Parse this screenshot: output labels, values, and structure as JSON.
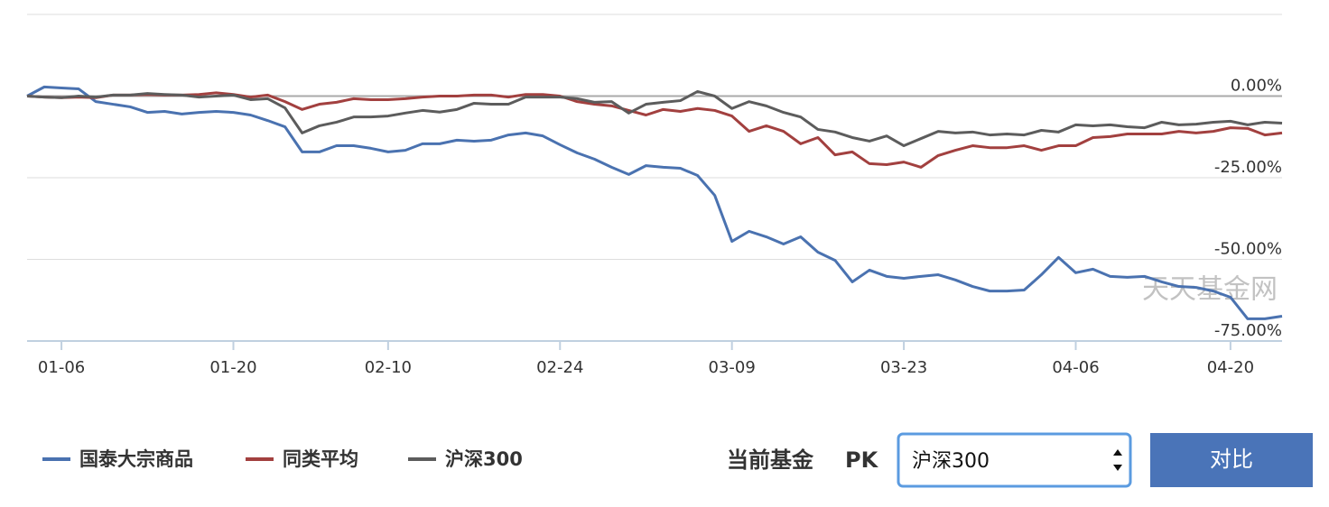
{
  "chart_data": {
    "type": "line",
    "watermark": "天天基金网",
    "categories": [
      null,
      null,
      "01-06",
      null,
      null,
      null,
      null,
      null,
      null,
      null,
      null,
      null,
      "01-20",
      null,
      null,
      null,
      null,
      null,
      null,
      null,
      null,
      "02-10",
      null,
      null,
      null,
      null,
      null,
      null,
      null,
      null,
      null,
      "02-24",
      null,
      null,
      null,
      null,
      null,
      null,
      null,
      null,
      null,
      "03-09",
      null,
      null,
      null,
      null,
      null,
      null,
      null,
      null,
      null,
      "03-23",
      null,
      null,
      null,
      null,
      null,
      null,
      null,
      null,
      null,
      "04-06",
      null,
      null,
      null,
      null,
      null,
      null,
      null,
      null,
      "04-20",
      null,
      null,
      null
    ],
    "series": [
      {
        "name": "国泰大宗商品",
        "color": "#4a72b0",
        "values": [
          0,
          2.8,
          2.5,
          2.2,
          -1.7,
          -2.5,
          -3.3,
          -5.0,
          -4.7,
          -5.5,
          -5.0,
          -4.7,
          -5.0,
          -5.8,
          -7.5,
          -9.4,
          -17.1,
          -17.1,
          -15.2,
          -15.2,
          -16.0,
          -17.1,
          -16.6,
          -14.6,
          -14.6,
          -13.5,
          -13.8,
          -13.5,
          -11.9,
          -11.3,
          -12.2,
          -14.9,
          -17.4,
          -19.3,
          -21.8,
          -24.0,
          -21.3,
          -21.8,
          -22.1,
          -24.3,
          -30.4,
          -44.5,
          -41.4,
          -43.1,
          -45.3,
          -43.1,
          -47.8,
          -50.3,
          -56.9,
          -53.3,
          -55.2,
          -55.8,
          -55.2,
          -54.7,
          -56.3,
          -58.3,
          -59.7,
          -59.7,
          -59.4,
          -54.7,
          -49.4,
          -54.1,
          -53.0,
          -55.2,
          -55.5,
          -55.2,
          -56.9,
          -58.3,
          -58.6,
          -59.7,
          -61.6,
          -68.2,
          -68.2,
          -67.4
        ]
      },
      {
        "name": "同类平均",
        "color": "#a2403f",
        "values": [
          0,
          -0.3,
          -0.5,
          -0.3,
          -0.5,
          0.3,
          0.3,
          0.5,
          0.3,
          0.3,
          0.5,
          1.0,
          0.5,
          -0.3,
          0.3,
          -1.7,
          -4.1,
          -2.5,
          -1.9,
          -0.8,
          -1.1,
          -1.1,
          -0.8,
          -0.3,
          0,
          0,
          0.3,
          0.3,
          -0.3,
          0.5,
          0.5,
          0,
          -1.7,
          -2.5,
          -3.0,
          -4.4,
          -5.8,
          -4.1,
          -4.7,
          -3.8,
          -4.4,
          -6.1,
          -10.8,
          -9.1,
          -10.8,
          -14.6,
          -12.7,
          -18.0,
          -17.1,
          -20.7,
          -21.0,
          -20.2,
          -21.8,
          -18.2,
          -16.6,
          -15.2,
          -15.8,
          -15.8,
          -15.2,
          -16.6,
          -15.2,
          -15.2,
          -12.7,
          -12.4,
          -11.6,
          -11.6,
          -11.6,
          -10.8,
          -11.3,
          -10.8,
          -9.7,
          -9.9,
          -11.9,
          -11.3
        ]
      },
      {
        "name": "沪深300",
        "color": "#5c5c5c",
        "values": [
          0,
          -0.3,
          -0.5,
          0,
          -0.3,
          0.3,
          0.3,
          0.8,
          0.5,
          0.3,
          -0.3,
          0,
          0.3,
          -1.1,
          -0.8,
          -3.6,
          -11.3,
          -9.1,
          -8.0,
          -6.4,
          -6.4,
          -6.1,
          -5.2,
          -4.4,
          -4.9,
          -4.1,
          -2.2,
          -2.5,
          -2.5,
          -0.3,
          -0.3,
          -0.3,
          -0.8,
          -1.9,
          -1.7,
          -5.2,
          -2.5,
          -1.9,
          -1.4,
          1.4,
          0,
          -3.8,
          -1.7,
          -3.0,
          -5.0,
          -6.4,
          -10.2,
          -11.0,
          -12.7,
          -13.8,
          -12.2,
          -15.2,
          -13.0,
          -10.8,
          -11.3,
          -11.0,
          -11.9,
          -11.6,
          -11.9,
          -10.5,
          -11.0,
          -8.8,
          -9.1,
          -8.8,
          -9.4,
          -9.7,
          -8.0,
          -8.8,
          -8.6,
          -8.0,
          -7.7,
          -8.8,
          -8.0,
          -8.3
        ]
      }
    ],
    "ylim": [
      -75,
      25
    ],
    "yticks": [
      {
        "value": 0,
        "label": "0.00%"
      },
      {
        "value": -25,
        "label": "-25.00%"
      },
      {
        "value": -50,
        "label": "-50.00%"
      },
      {
        "value": -75,
        "label": "-75.00%"
      }
    ],
    "grid": true
  },
  "controls": {
    "label": "当前基金",
    "pk": "PK",
    "select": "沪深300",
    "button": "对比"
  }
}
